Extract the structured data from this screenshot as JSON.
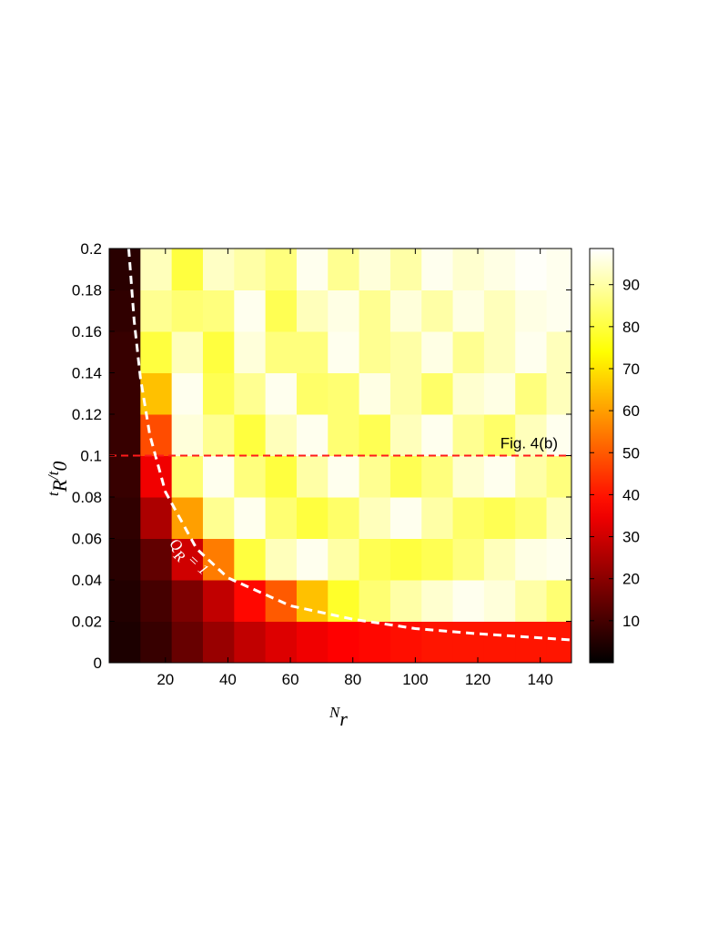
{
  "chart_data": {
    "type": "heatmap",
    "x_edges": [
      2,
      12,
      22,
      32,
      42,
      52,
      62,
      72,
      82,
      92,
      102,
      112,
      122,
      132,
      142,
      150
    ],
    "y_edges": [
      0,
      0.02,
      0.04,
      0.06,
      0.08,
      0.1,
      0.12,
      0.14,
      0.16,
      0.18,
      0.2
    ],
    "z": [
      [
        4,
        8,
        15,
        22,
        28,
        32,
        35,
        37,
        38,
        39,
        40,
        40,
        40,
        40,
        40
      ],
      [
        5,
        10,
        18,
        28,
        38,
        50,
        65,
        78,
        85,
        90,
        94,
        97,
        95,
        90,
        85
      ],
      [
        6,
        14,
        30,
        55,
        80,
        92,
        97,
        90,
        82,
        80,
        82,
        86,
        92,
        96,
        97
      ],
      [
        7,
        25,
        60,
        88,
        97,
        85,
        80,
        84,
        92,
        97,
        90,
        84,
        82,
        85,
        92
      ],
      [
        8,
        35,
        85,
        97,
        86,
        80,
        90,
        97,
        88,
        82,
        86,
        94,
        97,
        90,
        86
      ],
      [
        8,
        48,
        95,
        88,
        80,
        92,
        97,
        85,
        82,
        92,
        97,
        88,
        84,
        92,
        97
      ],
      [
        8,
        65,
        97,
        82,
        88,
        97,
        84,
        85,
        96,
        90,
        84,
        94,
        96,
        86,
        92
      ],
      [
        8,
        80,
        92,
        80,
        95,
        86,
        86,
        97,
        88,
        90,
        96,
        88,
        92,
        97,
        92
      ],
      [
        7,
        88,
        85,
        86,
        97,
        82,
        92,
        96,
        88,
        95,
        90,
        96,
        92,
        96,
        97
      ],
      [
        6,
        92,
        80,
        93,
        90,
        86,
        97,
        88,
        95,
        90,
        97,
        94,
        96,
        98,
        97
      ]
    ],
    "colormap": "hot",
    "clim": [
      0,
      98.6
    ],
    "cticks": [
      10,
      20,
      30,
      40,
      50,
      60,
      70,
      80,
      90
    ],
    "xlim": [
      2,
      150
    ],
    "xticks": [
      20,
      40,
      60,
      80,
      100,
      120,
      140
    ],
    "ylim": [
      0,
      0.2
    ],
    "yticks": [
      0,
      0.02,
      0.04,
      0.06,
      0.08,
      0.1,
      0.12,
      0.14,
      0.16,
      0.18,
      0.2
    ],
    "xlabel_parts": [
      {
        "text": "N"
      },
      {
        "text": "r",
        "sub": true
      }
    ],
    "ylabel_parts": [
      {
        "text": "t"
      },
      {
        "text": "R",
        "sub": true
      },
      {
        "text": "/t"
      },
      {
        "text": "0",
        "sub": true
      }
    ],
    "curve": {
      "color": "#ffffff",
      "x": [
        8.25,
        10,
        12,
        15,
        20,
        30,
        40,
        60,
        80,
        100,
        120,
        150
      ],
      "y": [
        0.2,
        0.165,
        0.1375,
        0.11,
        0.0825,
        0.055,
        0.041,
        0.0275,
        0.021,
        0.0165,
        0.014,
        0.011
      ],
      "label_parts": [
        {
          "text": "Q"
        },
        {
          "text": "R",
          "sub": true
        },
        {
          "text": " = 1"
        }
      ]
    },
    "reference_line": {
      "y": 0.1,
      "label": "Fig. 4(b)",
      "color": "#ff1a1a"
    }
  }
}
